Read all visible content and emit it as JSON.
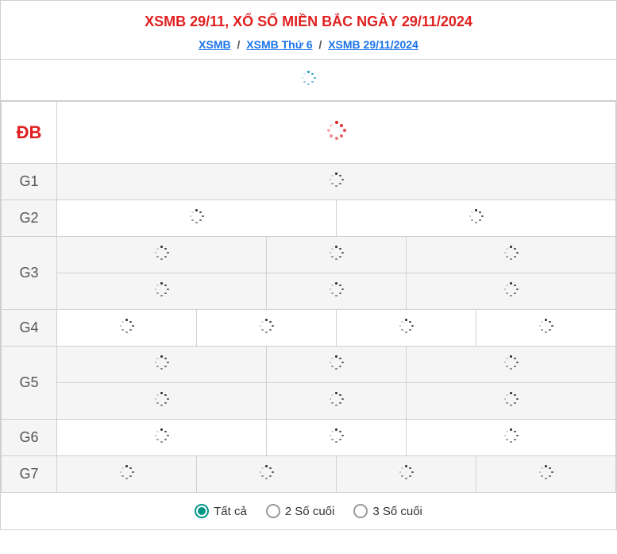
{
  "header": {
    "title": "XSMB 29/11, XỔ SỐ MIỀN BẮC NGÀY 29/11/2024",
    "breadcrumb": {
      "items": [
        {
          "label": "XSMB"
        },
        {
          "label": "XSMB Thứ 6"
        },
        {
          "label": "XSMB 29/11/2024"
        }
      ],
      "separator": "/"
    }
  },
  "colors": {
    "title": "#e02020",
    "link": "#1a73e8",
    "border": "#d0d0d0",
    "gray_bg": "#f5f5f5",
    "white": "#ffffff",
    "spinner_black": "#333333",
    "spinner_red": "#e02020",
    "spinner_blue": "#2196c4",
    "radio_active": "#009688",
    "radio_inactive": "#999999",
    "text": "#333333",
    "label_text": "#555555"
  },
  "table": {
    "rows": [
      {
        "label": "ĐB",
        "class": "db",
        "cells": 1,
        "gray": false,
        "spinner": "md",
        "height": 78
      },
      {
        "label": "G1",
        "cells": 1,
        "gray": true,
        "spinner": "sm"
      },
      {
        "label": "G2",
        "cells": 2,
        "gray": false,
        "spinner": "sm"
      },
      {
        "label": "G3",
        "subrows": 2,
        "cells": 3,
        "gray": true,
        "spinner": "sm"
      },
      {
        "label": "G4",
        "cells": 4,
        "gray": false,
        "spinner": "sm"
      },
      {
        "label": "G5",
        "subrows": 2,
        "cells": 3,
        "gray": true,
        "spinner": "sm"
      },
      {
        "label": "G6",
        "cells": 3,
        "gray": false,
        "spinner": "sm"
      },
      {
        "label": "G7",
        "cells": 4,
        "gray": true,
        "spinner": "sm"
      }
    ]
  },
  "footer": {
    "options": [
      {
        "label": "Tất cả",
        "selected": true
      },
      {
        "label": "2 Số cuối",
        "selected": false
      },
      {
        "label": "3 Số cuối",
        "selected": false
      }
    ]
  }
}
